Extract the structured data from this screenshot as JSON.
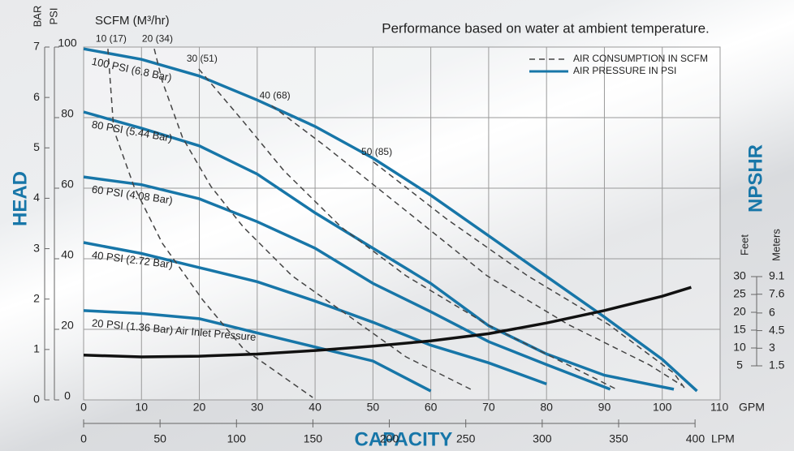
{
  "chart_data": {
    "type": "line",
    "title": "Performance based on water at ambient temperature.",
    "x_label": "CAPACITY",
    "y_label": "HEAD",
    "y2_label": "NPSHR",
    "x_unit": "GPM",
    "x_alt_unit": "LPM",
    "y_unit": "PSI",
    "y_alt_unit": "BAR",
    "y2_unit": "Feet",
    "y2_alt_unit": "Meters",
    "air_unit": "SCFM (M³/hr)",
    "xlim": [
      0,
      110
    ],
    "xticks": [
      0,
      10,
      20,
      30,
      40,
      50,
      60,
      70,
      80,
      90,
      100,
      110
    ],
    "x_alt_lim": [
      0,
      416.4
    ],
    "x_alt_ticks": [
      0,
      50,
      100,
      150,
      200,
      250,
      300,
      350,
      400
    ],
    "ylim": [
      0,
      100
    ],
    "yticks": [
      0,
      20,
      40,
      60,
      80,
      100
    ],
    "y_alt_lim": [
      0,
      7
    ],
    "y_alt_ticks": [
      0,
      1,
      2,
      3,
      4,
      5,
      6,
      7
    ],
    "y2lim": [
      5,
      30
    ],
    "y2ticks": [
      5,
      10,
      15,
      20,
      25,
      30
    ],
    "y2_alt_lim": [
      1.5,
      9.1
    ],
    "y2_alt_ticks": [
      1.5,
      3,
      4.5,
      6,
      7.6,
      9.1
    ],
    "grid": true,
    "legend_position": "upper right",
    "legend_items": [
      {
        "name": "AIR CONSUMPTION IN SCFM",
        "color": "#444444",
        "dashed": true
      },
      {
        "name": "AIR PRESSURE IN PSI",
        "color": "#1776a8",
        "dashed": false
      }
    ],
    "series": [
      {
        "name": "100 PSI (6.8 Bar)",
        "color": "#1776a8",
        "x": [
          0,
          10,
          20,
          30,
          40,
          50,
          60,
          70,
          80,
          90,
          100,
          106
        ],
        "values": [
          99.5,
          96.5,
          91.8,
          85,
          77.5,
          68.5,
          58,
          46.5,
          35,
          23.5,
          11.5,
          2.5
        ]
      },
      {
        "name": "80 PSI (5.44 Bar)",
        "color": "#1776a8",
        "x": [
          0,
          10,
          20,
          30,
          40,
          50,
          60,
          70,
          80,
          90,
          102
        ],
        "values": [
          81.6,
          77,
          72,
          64,
          53,
          43,
          33,
          21,
          13,
          7,
          3
        ]
      },
      {
        "name": "60 PSI (4.08 Bar)",
        "color": "#1776a8",
        "x": [
          0,
          10,
          20,
          30,
          40,
          50,
          60,
          70,
          80,
          91
        ],
        "values": [
          63.2,
          61,
          57,
          50.5,
          43,
          33,
          25,
          16.5,
          10,
          3
        ]
      },
      {
        "name": "40 PSI (2.72 Bar)",
        "color": "#1776a8",
        "x": [
          0,
          10,
          20,
          30,
          40,
          50,
          60,
          70,
          80
        ],
        "values": [
          44.6,
          41.5,
          37.5,
          33.5,
          28,
          22,
          15.5,
          10.5,
          4.5
        ]
      },
      {
        "name": "20 PSI (1.36 Bar) Air Inlet Pressure",
        "color": "#1776a8",
        "x": [
          0,
          10,
          20,
          30,
          40,
          50,
          60
        ],
        "values": [
          25.3,
          24.5,
          23,
          19,
          15,
          11,
          2.5
        ]
      },
      {
        "name": "10 (17)",
        "color": "#444444",
        "dashed": true,
        "x": [
          4.2,
          5.2,
          8.7,
          13.6,
          20.6,
          27.6,
          39.6
        ],
        "values": [
          99.5,
          76.6,
          60.5,
          44.4,
          28.3,
          14.5,
          0.7
        ]
      },
      {
        "name": "20 (34)",
        "color": "#444444",
        "dashed": true,
        "x": [
          12.2,
          13.6,
          17.1,
          22,
          27.6,
          36,
          45.9,
          55.7,
          66.9
        ],
        "values": [
          99.5,
          90.3,
          74.3,
          60.5,
          49,
          35.2,
          23.7,
          12.2,
          3
        ]
      },
      {
        "name": "30 (51)",
        "color": "#444444",
        "dashed": true,
        "x": [
          19.9,
          27.6,
          34.6,
          44.5,
          55.7,
          69.7,
          83.7,
          92.1
        ],
        "values": [
          93.8,
          78.9,
          65,
          49,
          35.2,
          21.4,
          9.9,
          3
        ]
      },
      {
        "name": "40 (68)",
        "color": "#444444",
        "dashed": true,
        "x": [
          32.5,
          41.7,
          55.7,
          69.7,
          83.7,
          97.8,
          103.4
        ],
        "values": [
          83.4,
          72,
          53.6,
          35.2,
          21.4,
          9.9,
          4.1
        ]
      },
      {
        "name": "50 (85)",
        "color": "#444444",
        "dashed": true,
        "x": [
          50.1,
          62.7,
          76.7,
          90.7,
          102,
          104
        ],
        "values": [
          67.4,
          51.3,
          35.2,
          21.4,
          7.6,
          3
        ]
      },
      {
        "axis": "y2",
        "color": "#111111",
        "x": [
          0,
          10,
          20,
          30,
          40,
          50,
          60,
          70,
          80,
          90,
          100,
          105
        ],
        "values": [
          8,
          7.5,
          7.7,
          8.3,
          9.3,
          10.5,
          12,
          14,
          17,
          20.5,
          24.5,
          27
        ]
      }
    ]
  }
}
